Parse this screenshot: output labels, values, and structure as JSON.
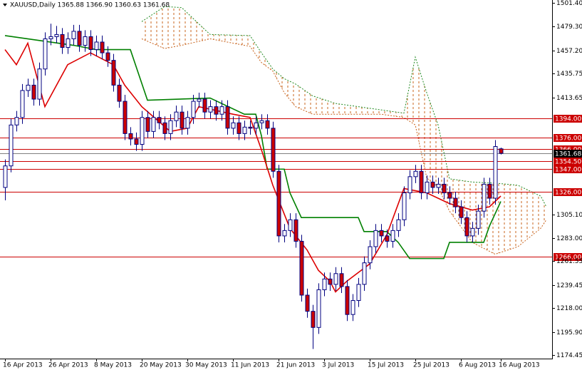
{
  "chart_data": {
    "type": "candlestick",
    "title": "XAUUSD,Daily  1365.88 1366.90 1360.63 1361.68",
    "categories": [
      "16 Apr 2013",
      null,
      null,
      null,
      null,
      null,
      null,
      null,
      "26 Apr 2013",
      null,
      null,
      null,
      null,
      null,
      null,
      null,
      "8 May 2013",
      null,
      null,
      null,
      null,
      null,
      null,
      null,
      "20 May 2013",
      null,
      null,
      null,
      null,
      null,
      null,
      null,
      "30 May 2013",
      null,
      null,
      null,
      null,
      null,
      null,
      null,
      "11 Jun 2013",
      null,
      null,
      null,
      null,
      null,
      null,
      null,
      "21 Jun 2013",
      null,
      null,
      null,
      null,
      null,
      null,
      null,
      "3 Jul 2013",
      null,
      null,
      null,
      null,
      null,
      null,
      null,
      "15 Jul 2013",
      null,
      null,
      null,
      null,
      null,
      null,
      null,
      "25 Jul 2013",
      null,
      null,
      null,
      null,
      null,
      null,
      null,
      "6 Aug 2013",
      null,
      null,
      null,
      null,
      null,
      null,
      "16 Aug 2013"
    ],
    "open": [
      1330,
      1350,
      1388,
      1395,
      1420,
      1425,
      1412,
      1440,
      1468,
      1470,
      1472,
      1460,
      1468,
      1475,
      1462,
      1470,
      1458,
      1465,
      1455,
      1448,
      1425,
      1410,
      1380,
      1375,
      1370,
      1395,
      1382,
      1395,
      1390,
      1380,
      1392,
      1400,
      1385,
      1395,
      1410,
      1412,
      1400,
      1405,
      1398,
      1405,
      1385,
      1390,
      1380,
      1386,
      1385,
      1390,
      1392,
      1385,
      1345,
      1285,
      1290,
      1300,
      1280,
      1230,
      1215,
      1200,
      1235,
      1245,
      1240,
      1250,
      1238,
      1212,
      1225,
      1240,
      1260,
      1275,
      1290,
      1285,
      1280,
      1290,
      1300,
      1325,
      1340,
      1345,
      1325,
      1335,
      1330,
      1333,
      1325,
      1320,
      1312,
      1302,
      1285,
      1292,
      1308,
      1333,
      1320,
      1365.88
    ],
    "high": [
      1356,
      1394,
      1401,
      1426,
      1431,
      1431,
      1446,
      1474,
      1482,
      1480,
      1478,
      1474,
      1481,
      1481,
      1476,
      1476,
      1471,
      1471,
      1461,
      1454,
      1431,
      1416,
      1386,
      1381,
      1401,
      1401,
      1401,
      1401,
      1396,
      1398,
      1406,
      1406,
      1401,
      1416,
      1418,
      1418,
      1411,
      1411,
      1411,
      1411,
      1396,
      1396,
      1392,
      1392,
      1396,
      1398,
      1398,
      1391,
      1351,
      1296,
      1306,
      1306,
      1286,
      1236,
      1221,
      1241,
      1251,
      1251,
      1256,
      1256,
      1244,
      1231,
      1246,
      1266,
      1281,
      1296,
      1296,
      1291,
      1296,
      1306,
      1331,
      1346,
      1351,
      1351,
      1341,
      1341,
      1339,
      1339,
      1331,
      1326,
      1318,
      1308,
      1298,
      1314,
      1339,
      1339,
      1374,
      1366.9
    ],
    "low": [
      1318,
      1344,
      1382,
      1389,
      1414,
      1406,
      1406,
      1434,
      1462,
      1464,
      1454,
      1454,
      1462,
      1456,
      1456,
      1452,
      1452,
      1449,
      1442,
      1419,
      1404,
      1374,
      1369,
      1364,
      1364,
      1376,
      1376,
      1384,
      1374,
      1374,
      1386,
      1379,
      1379,
      1389,
      1404,
      1394,
      1394,
      1392,
      1392,
      1379,
      1379,
      1374,
      1374,
      1379,
      1379,
      1384,
      1379,
      1339,
      1279,
      1279,
      1284,
      1274,
      1224,
      1209,
      1180,
      1194,
      1229,
      1234,
      1234,
      1232,
      1206,
      1206,
      1219,
      1234,
      1254,
      1269,
      1279,
      1274,
      1274,
      1284,
      1294,
      1319,
      1334,
      1319,
      1319,
      1324,
      1324,
      1319,
      1314,
      1306,
      1296,
      1279,
      1279,
      1286,
      1302,
      1314,
      1314,
      1360.63
    ],
    "close": [
      1350,
      1388,
      1395,
      1420,
      1425,
      1412,
      1440,
      1468,
      1470,
      1472,
      1460,
      1468,
      1475,
      1462,
      1470,
      1458,
      1465,
      1455,
      1448,
      1425,
      1410,
      1380,
      1375,
      1370,
      1395,
      1382,
      1395,
      1390,
      1380,
      1392,
      1400,
      1385,
      1395,
      1410,
      1412,
      1400,
      1405,
      1398,
      1405,
      1385,
      1390,
      1380,
      1386,
      1385,
      1390,
      1392,
      1385,
      1345,
      1285,
      1290,
      1300,
      1280,
      1230,
      1215,
      1200,
      1235,
      1245,
      1240,
      1250,
      1238,
      1212,
      1225,
      1240,
      1260,
      1275,
      1290,
      1285,
      1280,
      1290,
      1300,
      1325,
      1340,
      1345,
      1325,
      1335,
      1330,
      1333,
      1325,
      1320,
      1312,
      1302,
      1285,
      1292,
      1308,
      1333,
      1320,
      1368,
      1361.68
    ],
    "up_color": "#ffffff",
    "down_color": "#cc0000",
    "wick_color": "#000080",
    "ylim": [
      1172.4,
      1504.05
    ],
    "yticks": [
      {
        "value": 1501.4,
        "label": "1501.40"
      },
      {
        "value": 1479.3,
        "label": "1479.30"
      },
      {
        "value": 1457.2,
        "label": "1457.20"
      },
      {
        "value": 1435.75,
        "label": "1435.75"
      },
      {
        "value": 1413.65,
        "label": "1413.65"
      },
      {
        "value": 1305.1,
        "label": "1305.10"
      },
      {
        "value": 1283,
        "label": "1283.00"
      },
      {
        "value": 1261.55,
        "label": "1261.55"
      },
      {
        "value": 1239.45,
        "label": "1239.45"
      },
      {
        "value": 1218,
        "label": "1218.00"
      },
      {
        "value": 1195.9,
        "label": "1195.90"
      },
      {
        "value": 1174.45,
        "label": "1174.45"
      }
    ],
    "levels": [
      {
        "value": 1394,
        "label": "1394.00"
      },
      {
        "value": 1376,
        "label": "1376.00"
      },
      {
        "value": 1366,
        "label": "1366.00"
      },
      {
        "value": 1354.5,
        "label": "1354.50"
      },
      {
        "value": 1347,
        "label": "1347.00"
      },
      {
        "value": 1326,
        "label": "1326.00"
      },
      {
        "value": 1266,
        "label": "1266.00"
      }
    ],
    "level_color": "#cc0000",
    "bid_line": {
      "value": 1361.68,
      "label": "1361.68"
    },
    "tenkan": {
      "color": "#dd0000",
      "x": [
        0,
        2,
        4,
        7,
        11,
        15,
        19,
        21,
        24,
        29,
        32,
        34,
        40,
        43,
        45,
        47,
        50,
        53,
        55,
        57,
        58,
        60,
        64,
        67,
        70,
        74,
        78,
        82,
        85,
        87
      ],
      "values": [
        1458,
        1444,
        1464,
        1405,
        1444,
        1455,
        1444,
        1425,
        1405,
        1382,
        1385,
        1405,
        1398,
        1395,
        1365,
        1332,
        1292,
        1272,
        1253,
        1243,
        1233,
        1243,
        1259,
        1286,
        1329,
        1325,
        1315,
        1309,
        1312,
        1322
      ]
    },
    "kijun": {
      "color": "#008000",
      "x": [
        0,
        12,
        16,
        22,
        25,
        36,
        42,
        44,
        45,
        46,
        49,
        50,
        52,
        62,
        63,
        67,
        69,
        71,
        77,
        78,
        84,
        85,
        87
      ],
      "values": [
        1471,
        1462,
        1458,
        1458,
        1411,
        1413,
        1398,
        1398,
        1378,
        1347,
        1347,
        1325,
        1302,
        1302,
        1289,
        1289,
        1279,
        1264,
        1264,
        1279,
        1279,
        1294,
        1317
      ]
    },
    "cloud": {
      "color": "#c8641e",
      "edge_colors": [
        "#228b22",
        "#c8641e"
      ],
      "x": [
        24,
        28,
        31,
        36,
        43,
        45,
        47,
        49,
        51,
        54,
        58,
        62,
        66,
        70,
        72,
        74,
        76,
        78,
        82,
        86,
        90,
        94,
        95
      ],
      "upper": [
        1484,
        1498,
        1497,
        1472,
        1471,
        1455,
        1440,
        1431,
        1426,
        1415,
        1408,
        1405,
        1402,
        1399,
        1451,
        1418,
        1388,
        1338,
        1335,
        1334,
        1332,
        1322,
        1312
      ],
      "lower": [
        1468,
        1459,
        1462,
        1468,
        1461,
        1446,
        1438,
        1418,
        1405,
        1398,
        1398,
        1398,
        1398,
        1395,
        1388,
        1339,
        1330,
        1308,
        1279,
        1268,
        1275,
        1292,
        1300
      ]
    }
  }
}
